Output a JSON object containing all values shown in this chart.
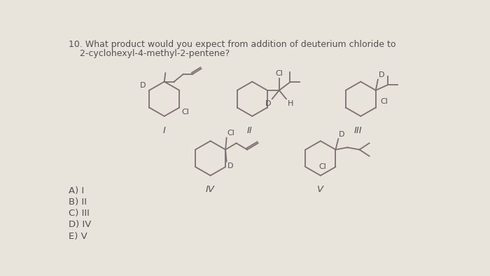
{
  "bg_color": "#e8e4dc",
  "title_line1": "10. What product would you expect from addition of deuterium chloride to",
  "title_line2": "    2-cyclohexyl-4-methyl-2-pentene?",
  "answer_choices": [
    "A) I",
    "B) II",
    "C) III",
    "D) IV",
    "E) V"
  ],
  "text_color": "#555050",
  "line_color": "#7a7070",
  "font_size_title": 9.0,
  "font_size_label": 9.5,
  "font_size_choices": 9.5,
  "font_size_atom": 8.0,
  "lw": 1.3,
  "hex_r": 0.32
}
